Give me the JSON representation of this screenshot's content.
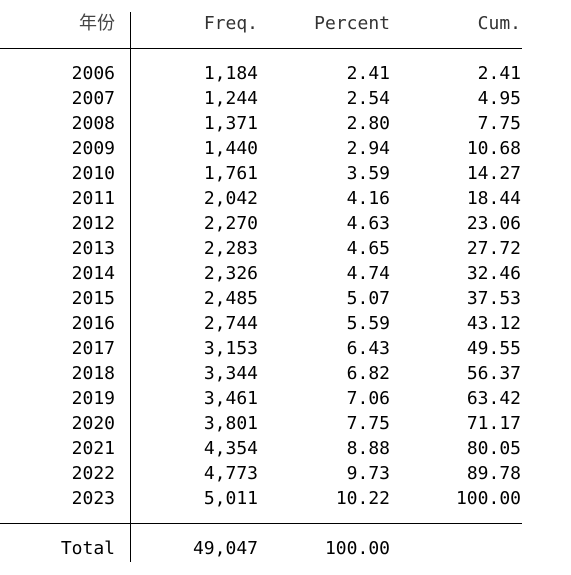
{
  "headers": [
    "年份",
    "Freq.",
    "Percent",
    "Cum."
  ],
  "rows": [
    [
      "2006",
      "1,184",
      "2.41",
      "2.41"
    ],
    [
      "2007",
      "1,244",
      "2.54",
      "4.95"
    ],
    [
      "2008",
      "1,371",
      "2.80",
      "7.75"
    ],
    [
      "2009",
      "1,440",
      "2.94",
      "10.68"
    ],
    [
      "2010",
      "1,761",
      "3.59",
      "14.27"
    ],
    [
      "2011",
      "2,042",
      "4.16",
      "18.44"
    ],
    [
      "2012",
      "2,270",
      "4.63",
      "23.06"
    ],
    [
      "2013",
      "2,283",
      "4.65",
      "27.72"
    ],
    [
      "2014",
      "2,326",
      "4.74",
      "32.46"
    ],
    [
      "2015",
      "2,485",
      "5.07",
      "37.53"
    ],
    [
      "2016",
      "2,744",
      "5.59",
      "43.12"
    ],
    [
      "2017",
      "3,153",
      "6.43",
      "49.55"
    ],
    [
      "2018",
      "3,344",
      "6.82",
      "56.37"
    ],
    [
      "2019",
      "3,461",
      "7.06",
      "63.42"
    ],
    [
      "2020",
      "3,801",
      "7.75",
      "71.17"
    ],
    [
      "2021",
      "4,354",
      "8.88",
      "80.05"
    ],
    [
      "2022",
      "4,773",
      "9.73",
      "89.78"
    ],
    [
      "2023",
      "5,011",
      "10.22",
      "100.00"
    ]
  ],
  "total": [
    "Total",
    "49,047",
    "100.00"
  ]
}
